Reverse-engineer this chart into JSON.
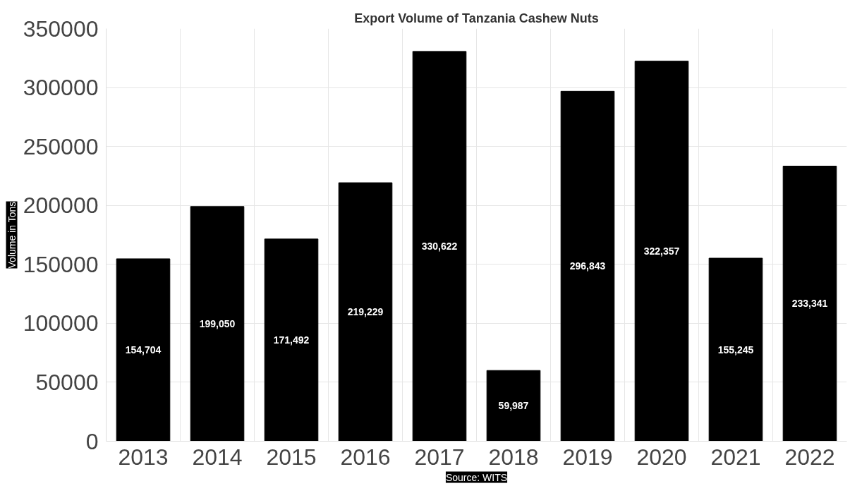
{
  "chart_data": {
    "type": "bar",
    "title": "Export Volume of Tanzania Cashew Nuts",
    "ylabel": "Volume in Tons",
    "categories": [
      "2013",
      "2014",
      "2015",
      "2016",
      "2017",
      "2018",
      "2019",
      "2020",
      "2021",
      "2022"
    ],
    "values": [
      154704,
      199050,
      171492,
      219229,
      330622,
      59987,
      296843,
      322357,
      155245,
      233341
    ],
    "value_labels": [
      "154,704",
      "199,050",
      "171,492",
      "219,229",
      "330,622",
      "59,987",
      "296,843",
      "322,357",
      "155,245",
      "233,341"
    ],
    "color": "#000000",
    "ylim": [
      0,
      350000
    ],
    "yticks": [
      0,
      50000,
      100000,
      150000,
      200000,
      250000,
      300000,
      350000
    ],
    "grid": true,
    "annotations": [
      "Source: WITS"
    ]
  }
}
